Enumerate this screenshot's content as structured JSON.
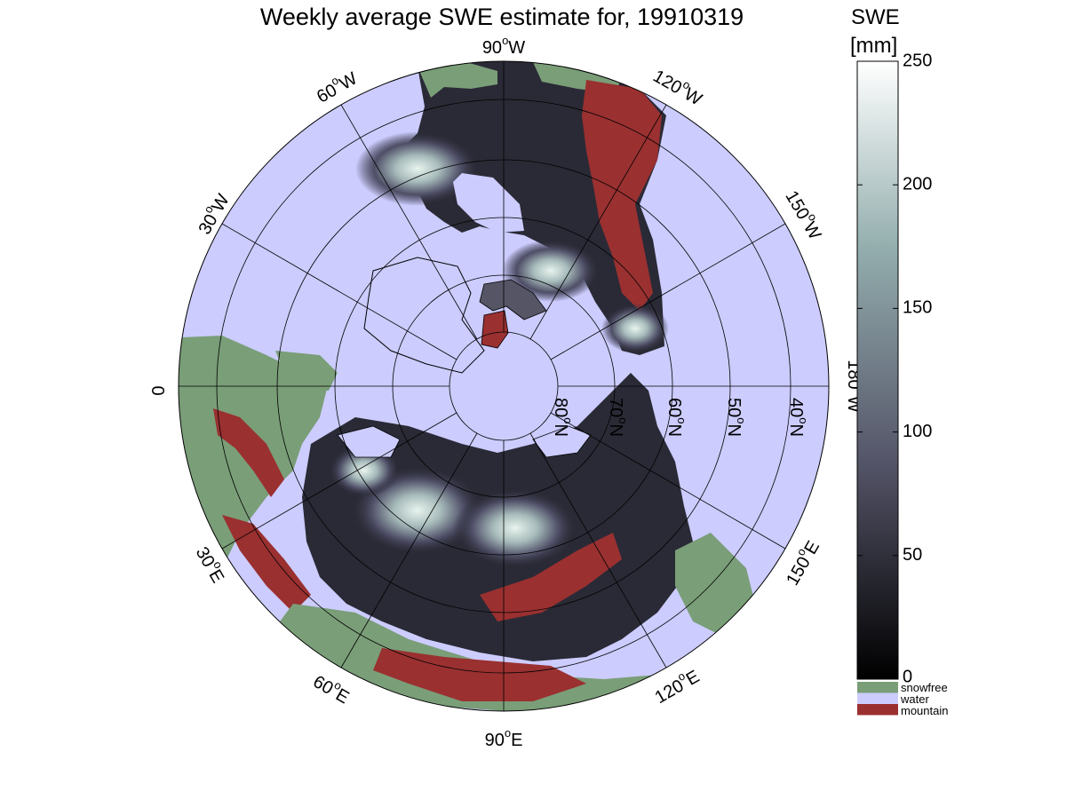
{
  "title": "Weekly average SWE estimate for, 19910319",
  "colorbar": {
    "title_line1": "SWE",
    "title_line2": "[mm]",
    "ticks": [
      "250",
      "200",
      "150",
      "100",
      "50",
      "0"
    ],
    "tick_values": [
      250,
      200,
      150,
      100,
      50,
      0
    ],
    "range": [
      0,
      250
    ],
    "colormap": "bone (black to white)"
  },
  "legend": [
    {
      "label": "snowfree",
      "color": "#7a9e78"
    },
    {
      "label": "water",
      "color": "#ccccff"
    },
    {
      "label": "mountain",
      "color": "#9a3030"
    }
  ],
  "map": {
    "projection": "north polar stereographic",
    "longitude_labels": [
      "90°W",
      "60°W",
      "30°W",
      "0",
      "120°W",
      "150°W",
      "180°W",
      "30°E",
      "60°E",
      "90°E",
      "120°E",
      "150°E"
    ],
    "latitude_labels": [
      "80°N",
      "70°N",
      "60°N",
      "50°N",
      "40°N"
    ],
    "colors": {
      "water": "#ccccff",
      "snowfree": "#7a9e78",
      "mountain": "#9a3030",
      "snow_low": "#1c1c24",
      "snow_mid": "#4a4a62",
      "snow_high": "#c8dcd6"
    }
  }
}
